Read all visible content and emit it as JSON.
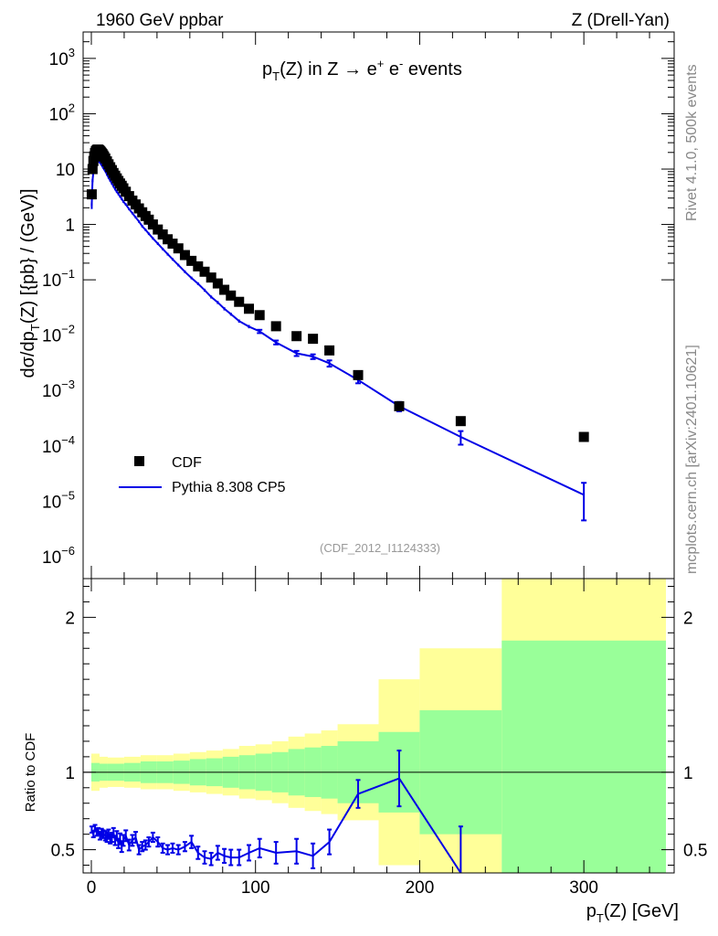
{
  "header": {
    "left": "1960 GeV ppbar",
    "right": "Z (Drell-Yan)"
  },
  "side": {
    "rivet": "Rivet 4.1.0,  500k events",
    "mcplots": "mcplots.cern.ch [arXiv:2401.10621]"
  },
  "colors": {
    "data": "#000000",
    "mc": "#0000e6",
    "band_inner": "#99ff99",
    "band_outer": "#ffff99"
  },
  "chart_data": [
    {
      "type": "scatter",
      "title": {
        "main": "p",
        "sub": "T",
        "rest": "(Z) in Z →  e",
        "sup1": "+",
        "gap": " e",
        "sup2": "-",
        "tail": " events"
      },
      "analysis": "(CDF_2012_I1124333)",
      "ylabel": {
        "a": "dσ/dp",
        "sub": "T",
        "b": "(Z) [{pb} / (GeV)]"
      },
      "yscale": "log",
      "ylim": [
        4e-07,
        3000.0
      ],
      "xlim": [
        -5,
        355
      ],
      "yticks": [
        {
          "v": 1000.0,
          "base": "10",
          "exp": "3"
        },
        {
          "v": 100.0,
          "base": "10",
          "exp": "2"
        },
        {
          "v": 10,
          "base": "10",
          "exp": ""
        },
        {
          "v": 1,
          "base": "1",
          "exp": ""
        },
        {
          "v": 0.1,
          "base": "10",
          "exp": "−1"
        },
        {
          "v": 0.01,
          "base": "10",
          "exp": "−2"
        },
        {
          "v": 0.001,
          "base": "10",
          "exp": "−3"
        },
        {
          "v": 0.0001,
          "base": "10",
          "exp": "−4"
        },
        {
          "v": 1e-05,
          "base": "10",
          "exp": "−5"
        },
        {
          "v": 1e-06,
          "base": "10",
          "exp": "−6"
        }
      ],
      "legend": {
        "data_label": "CDF",
        "mc_label": "Pythia 8.308 CP5",
        "placement": "bottom-left"
      },
      "series": [
        {
          "name": "CDF",
          "style": "markers",
          "points": [
            [
              0.25,
              3.5
            ],
            [
              0.75,
              10
            ],
            [
              1.25,
              14
            ],
            [
              1.75,
              17
            ],
            [
              2.25,
              19.5
            ],
            [
              2.75,
              21
            ],
            [
              3.25,
              22
            ],
            [
              3.75,
              22.5
            ],
            [
              4.25,
              22.5
            ],
            [
              4.75,
              22
            ],
            [
              5.25,
              21.3
            ],
            [
              5.75,
              20.5
            ],
            [
              6.25,
              19.6
            ],
            [
              6.75,
              18.7
            ],
            [
              7.25,
              17.7
            ],
            [
              7.75,
              16.8
            ],
            [
              8.5,
              15.6
            ],
            [
              9.5,
              13.8
            ],
            [
              10.5,
              12.2
            ],
            [
              11.5,
              10.8
            ],
            [
              12.5,
              9.6
            ],
            [
              13.5,
              8.5
            ],
            [
              14.5,
              7.6
            ],
            [
              15.5,
              6.8
            ],
            [
              16.5,
              6.1
            ],
            [
              17.5,
              5.5
            ],
            [
              18.5,
              5.0
            ],
            [
              19.5,
              4.5
            ],
            [
              21,
              3.9
            ],
            [
              23,
              3.25
            ],
            [
              25,
              2.7
            ],
            [
              27,
              2.3
            ],
            [
              29,
              1.95
            ],
            [
              31,
              1.66
            ],
            [
              33,
              1.42
            ],
            [
              35,
              1.22
            ],
            [
              37.5,
              1.0
            ],
            [
              40.5,
              0.81
            ],
            [
              43.5,
              0.66
            ],
            [
              46.5,
              0.54
            ],
            [
              49.5,
              0.45
            ],
            [
              53,
              0.37
            ],
            [
              57,
              0.28
            ],
            [
              61,
              0.22
            ],
            [
              65,
              0.175
            ],
            [
              69,
              0.14
            ],
            [
              73,
              0.11
            ],
            [
              77,
              0.086
            ],
            [
              81,
              0.066
            ],
            [
              85,
              0.052
            ],
            [
              90,
              0.04
            ],
            [
              96,
              0.03
            ],
            [
              102.5,
              0.023
            ],
            [
              112.5,
              0.0145
            ],
            [
              125,
              0.0096
            ],
            [
              135,
              0.0086
            ],
            [
              145,
              0.0053
            ],
            [
              162.5,
              0.0019
            ],
            [
              187.5,
              0.00052
            ],
            [
              225,
              0.00028
            ],
            [
              300,
              0.000145
            ]
          ]
        },
        {
          "name": "Pythia 8.308 CP5",
          "style": "line",
          "points": [
            [
              0.25,
              2.2,
              0.3
            ],
            [
              0.75,
              6.2,
              0.4
            ],
            [
              1.25,
              8.8,
              0.5
            ],
            [
              1.75,
              11,
              0.5
            ],
            [
              2.25,
              12.4,
              0.5
            ],
            [
              2.75,
              13.3,
              0.5
            ],
            [
              3.25,
              13.9,
              0.5
            ],
            [
              3.75,
              14.1,
              0.5
            ],
            [
              4.25,
              14,
              0.5
            ],
            [
              4.75,
              13.6,
              0.5
            ],
            [
              5.25,
              13.1,
              0.5
            ],
            [
              5.75,
              12.5,
              0.5
            ],
            [
              6.25,
              11.9,
              0.5
            ],
            [
              6.75,
              11.2,
              0.5
            ],
            [
              7.25,
              10.6,
              0.5
            ],
            [
              7.75,
              10,
              0.5
            ],
            [
              8.5,
              9.2,
              0.4
            ],
            [
              9.5,
              8.0,
              0.4
            ],
            [
              10.5,
              7.0,
              0.35
            ],
            [
              11.5,
              6.2,
              0.3
            ],
            [
              12.5,
              5.5,
              0.3
            ],
            [
              13.5,
              4.9,
              0.25
            ],
            [
              14.5,
              4.35,
              0.22
            ],
            [
              15.5,
              3.9,
              0.2
            ],
            [
              16.5,
              3.55,
              0.18
            ],
            [
              17.5,
              3.2,
              0.16
            ],
            [
              18.5,
              2.9,
              0.15
            ],
            [
              19.5,
              2.6,
              0.14
            ],
            [
              21,
              2.3,
              0.12
            ],
            [
              23,
              1.9,
              0.1
            ],
            [
              25,
              1.6,
              0.08
            ],
            [
              27,
              1.35,
              0.07
            ],
            [
              29,
              1.13,
              0.06
            ],
            [
              31,
              0.93,
              0.05
            ],
            [
              33,
              0.8,
              0.04
            ],
            [
              35,
              0.68,
              0.035
            ],
            [
              37.5,
              0.56,
              0.03
            ],
            [
              40.5,
              0.45,
              0.025
            ],
            [
              43.5,
              0.36,
              0.02
            ],
            [
              46.5,
              0.29,
              0.016
            ],
            [
              49.5,
              0.235,
              0.013
            ],
            [
              53,
              0.185,
              0.01
            ],
            [
              57,
              0.14,
              0.008
            ],
            [
              61,
              0.108,
              0.006
            ],
            [
              65,
              0.085,
              0.005
            ],
            [
              69,
              0.065,
              0.004
            ],
            [
              73,
              0.049,
              0.003
            ],
            [
              77,
              0.039,
              0.0025
            ],
            [
              81,
              0.03,
              0.002
            ],
            [
              85,
              0.024,
              0.0015
            ],
            [
              90,
              0.018,
              0.0012
            ],
            [
              96,
              0.0143,
              0.001
            ],
            [
              102.5,
              0.0117,
              0.0008
            ],
            [
              112.5,
              0.0074,
              0.0006
            ],
            [
              125,
              0.0047,
              0.0005
            ],
            [
              135,
              0.0041,
              0.0004
            ],
            [
              145,
              0.0031,
              0.0004
            ],
            [
              162.5,
              0.00155,
              0.0002
            ],
            [
              187.5,
              0.00052,
              0.0001
            ],
            [
              225,
              0.000145,
              4e-05
            ],
            [
              300,
              1.3e-05,
              8.5e-06
            ]
          ]
        }
      ]
    },
    {
      "type": "line",
      "ylabel": "Ratio to CDF",
      "xlabel": {
        "a": "p",
        "sub": "T",
        "b": "(Z) [GeV]"
      },
      "xlim": [
        -5,
        355
      ],
      "ylim": [
        0.35,
        2.25
      ],
      "xticks": [
        0,
        100,
        200,
        300
      ],
      "yticks": [
        0.5,
        1,
        2
      ],
      "reference": 1,
      "bands": [
        {
          "x0": 0,
          "x1": 5,
          "inner": 0.06,
          "outer": 0.12
        },
        {
          "x0": 5,
          "x1": 10,
          "inner": 0.055,
          "outer": 0.1
        },
        {
          "x0": 10,
          "x1": 20,
          "inner": 0.055,
          "outer": 0.095
        },
        {
          "x0": 20,
          "x1": 30,
          "inner": 0.06,
          "outer": 0.1
        },
        {
          "x0": 30,
          "x1": 40,
          "inner": 0.07,
          "outer": 0.11
        },
        {
          "x0": 40,
          "x1": 50,
          "inner": 0.07,
          "outer": 0.11
        },
        {
          "x0": 50,
          "x1": 60,
          "inner": 0.075,
          "outer": 0.12
        },
        {
          "x0": 60,
          "x1": 70,
          "inner": 0.085,
          "outer": 0.13
        },
        {
          "x0": 70,
          "x1": 80,
          "inner": 0.09,
          "outer": 0.14
        },
        {
          "x0": 80,
          "x1": 90,
          "inner": 0.1,
          "outer": 0.15
        },
        {
          "x0": 90,
          "x1": 100,
          "inner": 0.11,
          "outer": 0.17
        },
        {
          "x0": 100,
          "x1": 110,
          "inner": 0.12,
          "outer": 0.18
        },
        {
          "x0": 110,
          "x1": 120,
          "inner": 0.13,
          "outer": 0.2
        },
        {
          "x0": 120,
          "x1": 130,
          "inner": 0.15,
          "outer": 0.23
        },
        {
          "x0": 130,
          "x1": 140,
          "inner": 0.16,
          "outer": 0.25
        },
        {
          "x0": 140,
          "x1": 150,
          "inner": 0.17,
          "outer": 0.27
        },
        {
          "x0": 150,
          "x1": 175,
          "inner": 0.2,
          "outer": 0.31
        },
        {
          "x0": 175,
          "x1": 200,
          "inner": 0.26,
          "outer": 0.6
        },
        {
          "x0": 200,
          "x1": 250,
          "inner": 0.4,
          "outer": 0.8
        },
        {
          "x0": 250,
          "x1": 350,
          "inner": 0.85,
          "outer": 1.3
        }
      ],
      "series": [
        {
          "name": "Pythia 8.308 CP5",
          "points": [
            [
              0.25,
              0.63,
              0.02
            ],
            [
              1.25,
              0.6,
              0.02
            ],
            [
              2.25,
              0.64,
              0.02
            ],
            [
              3.25,
              0.61,
              0.02
            ],
            [
              4.25,
              0.62,
              0.02
            ],
            [
              5.25,
              0.59,
              0.025
            ],
            [
              6.25,
              0.61,
              0.025
            ],
            [
              7.25,
              0.6,
              0.025
            ],
            [
              8.5,
              0.59,
              0.03
            ],
            [
              9.5,
              0.58,
              0.03
            ],
            [
              10.5,
              0.6,
              0.03
            ],
            [
              11.5,
              0.57,
              0.03
            ],
            [
              12.5,
              0.58,
              0.03
            ],
            [
              13.5,
              0.61,
              0.03
            ],
            [
              14.5,
              0.56,
              0.03
            ],
            [
              15.5,
              0.59,
              0.03
            ],
            [
              16.5,
              0.54,
              0.03
            ],
            [
              17.5,
              0.57,
              0.035
            ],
            [
              18.5,
              0.52,
              0.035
            ],
            [
              19.5,
              0.56,
              0.035
            ],
            [
              21,
              0.59,
              0.035
            ],
            [
              23,
              0.53,
              0.035
            ],
            [
              25,
              0.56,
              0.035
            ],
            [
              27,
              0.58,
              0.035
            ],
            [
              29,
              0.5,
              0.03
            ],
            [
              31,
              0.52,
              0.03
            ],
            [
              33,
              0.53,
              0.03
            ],
            [
              35,
              0.55,
              0.03
            ],
            [
              37.5,
              0.58,
              0.03
            ],
            [
              40.5,
              0.55,
              0.03
            ],
            [
              43.5,
              0.51,
              0.03
            ],
            [
              46.5,
              0.5,
              0.03
            ],
            [
              49.5,
              0.51,
              0.03
            ],
            [
              53,
              0.5,
              0.03
            ],
            [
              57,
              0.52,
              0.03
            ],
            [
              61,
              0.55,
              0.04
            ],
            [
              65,
              0.48,
              0.04
            ],
            [
              69,
              0.45,
              0.04
            ],
            [
              73,
              0.44,
              0.04
            ],
            [
              77,
              0.48,
              0.045
            ],
            [
              81,
              0.46,
              0.045
            ],
            [
              85,
              0.45,
              0.05
            ],
            [
              90,
              0.45,
              0.05
            ],
            [
              96,
              0.48,
              0.05
            ],
            [
              102.5,
              0.51,
              0.06
            ],
            [
              112.5,
              0.48,
              0.07
            ],
            [
              125,
              0.49,
              0.08
            ],
            [
              135,
              0.46,
              0.08
            ],
            [
              145,
              0.55,
              0.08
            ],
            [
              162.5,
              0.86,
              0.09
            ],
            [
              187.5,
              0.96,
              0.18
            ],
            [
              225,
              0.35,
              0.3
            ]
          ]
        }
      ]
    }
  ]
}
